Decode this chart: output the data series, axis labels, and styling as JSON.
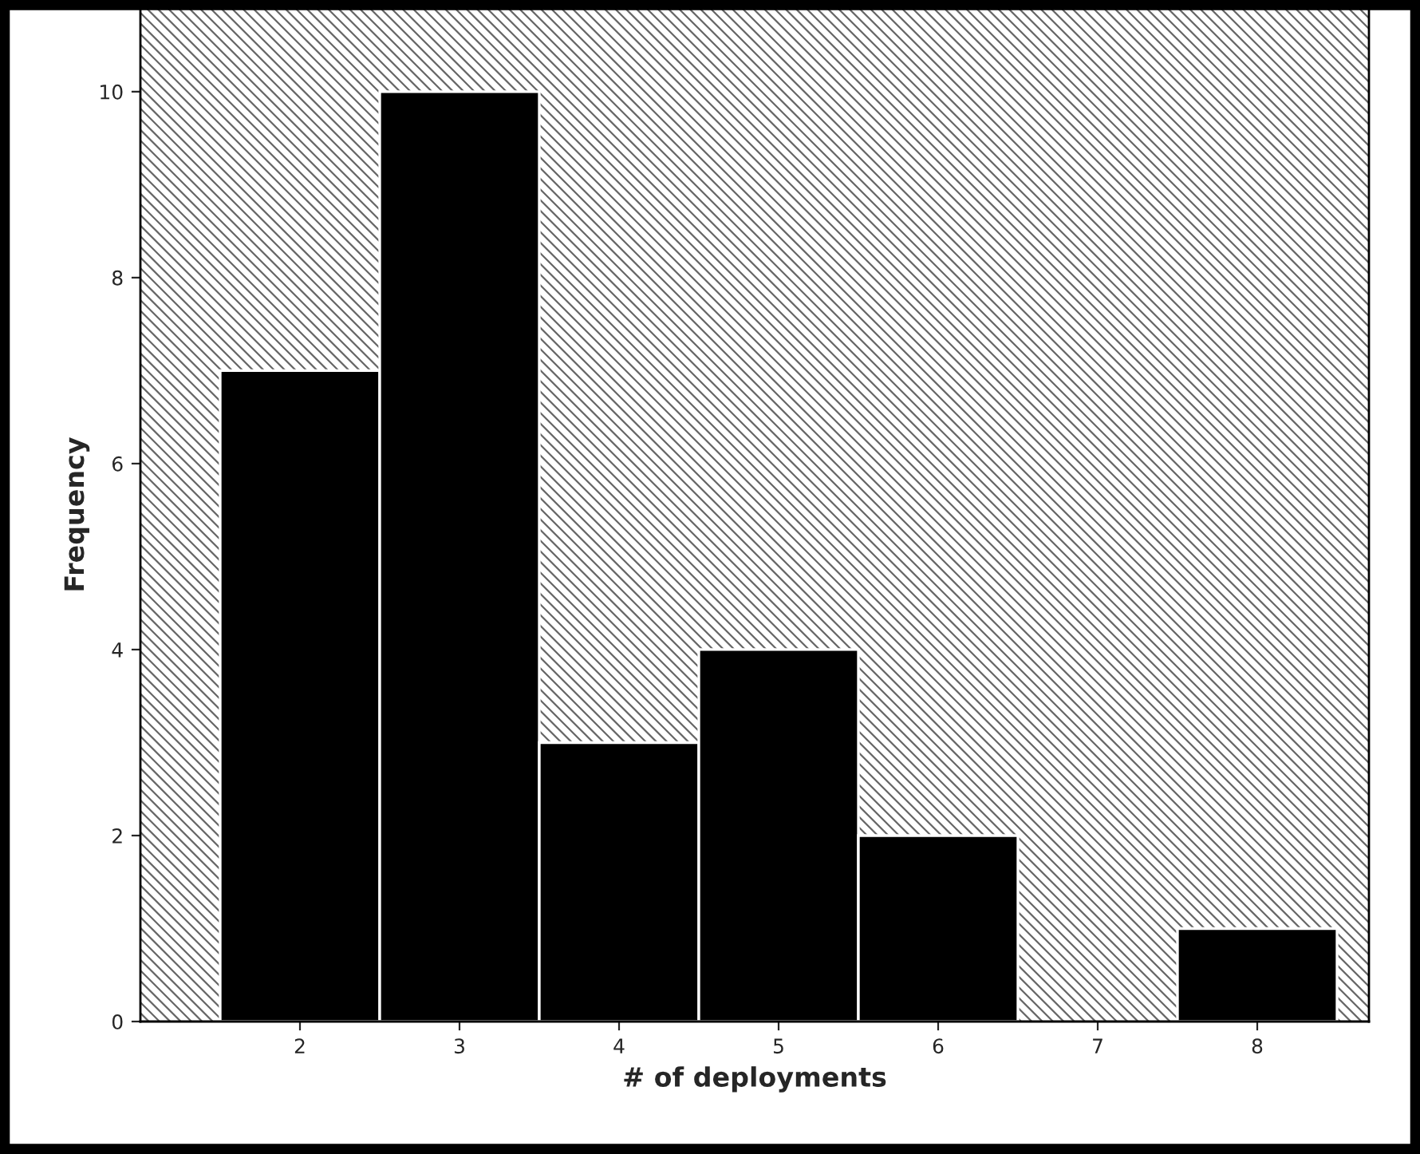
{
  "chart_data": {
    "type": "histogram",
    "xlabel": "# of deployments",
    "ylabel": "Frequency",
    "bins": [
      1.5,
      2.5,
      3.5,
      4.5,
      5.5,
      6.5,
      7.5,
      8.5
    ],
    "values": [
      7,
      10,
      3,
      4,
      2,
      0,
      1
    ],
    "color": "#000000",
    "xlim": [
      1.0,
      8.7
    ],
    "xticks": [
      2,
      3,
      4,
      5,
      6,
      7,
      8
    ],
    "ylim": [
      0,
      10.9
    ],
    "yticks": [
      0,
      2,
      4,
      6,
      8,
      10
    ],
    "grid": false
  }
}
